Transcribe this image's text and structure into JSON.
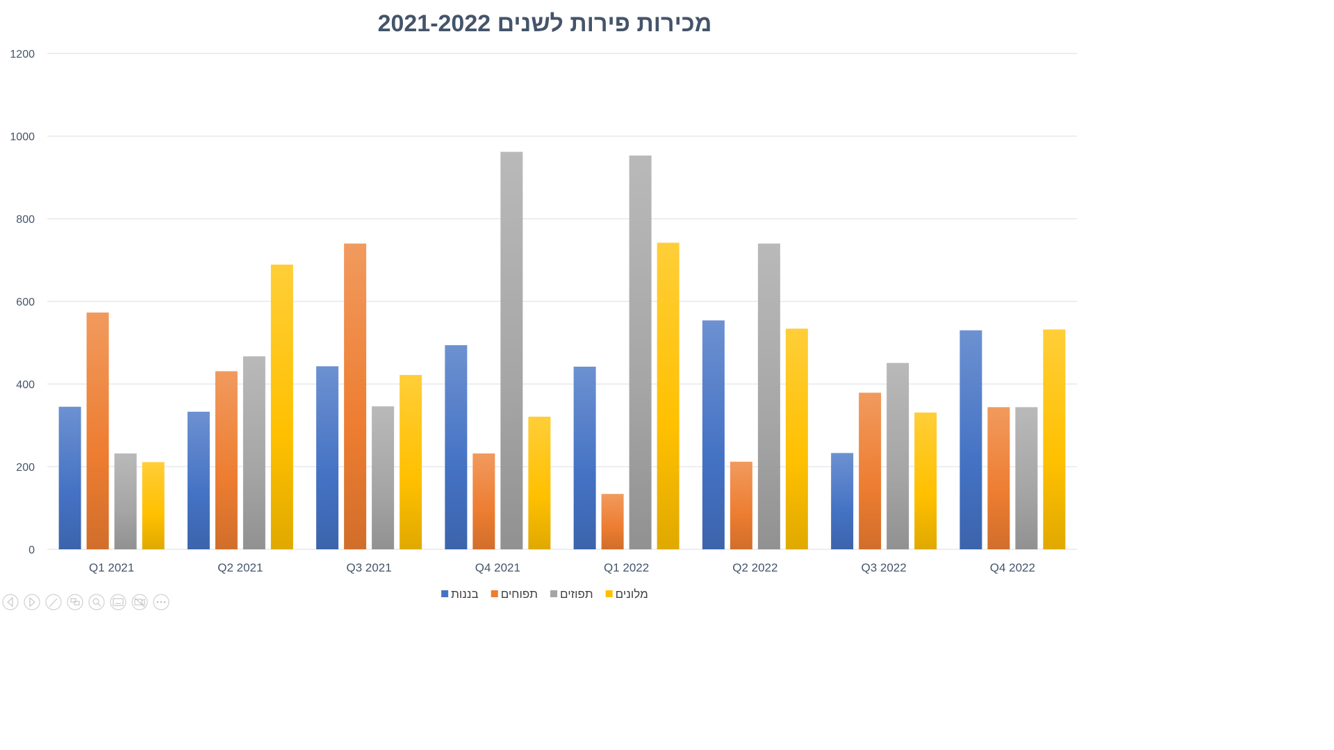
{
  "chart_data": {
    "type": "bar",
    "title": "מכירות פירות לשנים 2021-2022",
    "categories": [
      "Q1 2021",
      "Q2 2021",
      "Q3 2021",
      "Q4 2021",
      "Q1 2022",
      "Q2 2022",
      "Q3 2022",
      "Q4 2022"
    ],
    "series": [
      {
        "name": "בננות",
        "color": "#4472c4",
        "values": [
          345,
          333,
          443,
          494,
          442,
          554,
          233,
          530
        ]
      },
      {
        "name": "תפוחים",
        "color": "#ed7d31",
        "values": [
          573,
          431,
          740,
          232,
          134,
          212,
          379,
          344
        ]
      },
      {
        "name": "תפוזים",
        "color": "#a5a5a5",
        "values": [
          232,
          467,
          346,
          962,
          953,
          740,
          451,
          344
        ]
      },
      {
        "name": "מלונים",
        "color": "#ffc000",
        "values": [
          211,
          689,
          422,
          321,
          742,
          534,
          331,
          532
        ]
      }
    ],
    "ylim": [
      0,
      1200
    ],
    "yticks": [
      "0",
      "200",
      "400",
      "600",
      "800",
      "1000",
      "1200"
    ],
    "grid": true,
    "legend_position": "bottom"
  },
  "nav_icons": [
    "prev-icon",
    "next-icon",
    "pen-icon",
    "slides-icon",
    "zoom-icon",
    "subtitles-icon",
    "camera-off-icon",
    "more-icon"
  ]
}
